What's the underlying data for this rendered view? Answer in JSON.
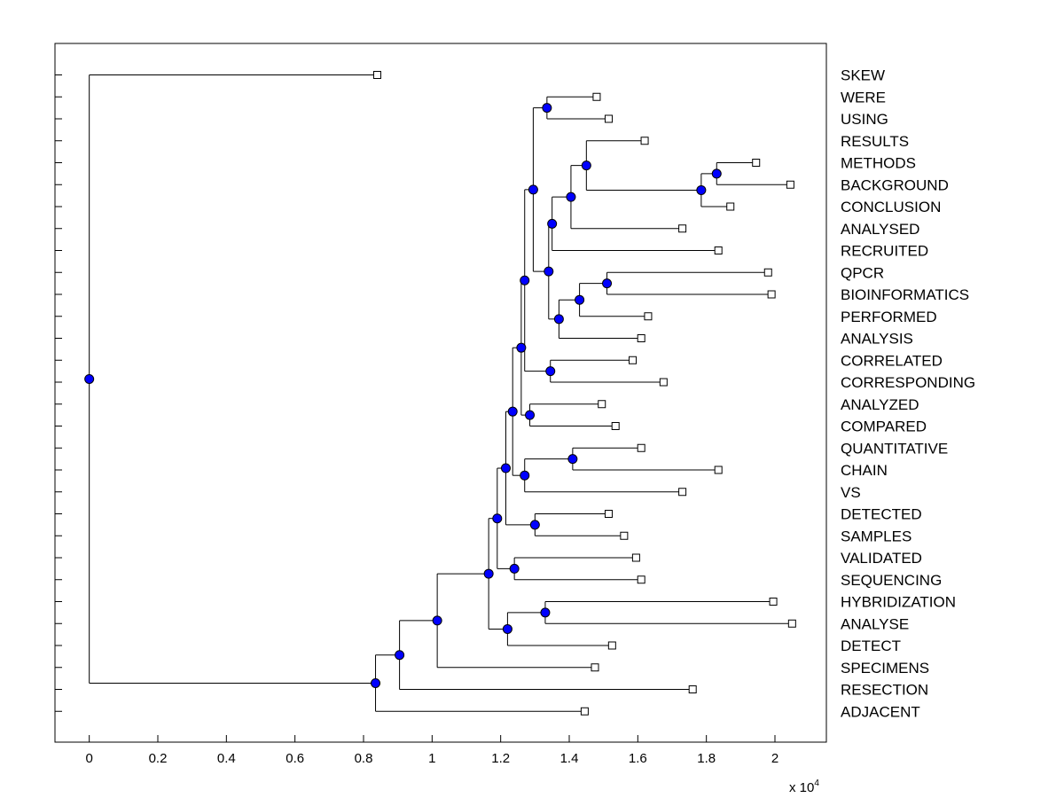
{
  "chart_data": {
    "type": "dendrogram",
    "title": "",
    "xlabel": "",
    "ylabel": "",
    "xlim": [
      -1000,
      21500
    ],
    "x_ticks": [
      0,
      2000,
      4000,
      6000,
      8000,
      10000,
      12000,
      14000,
      16000,
      18000,
      20000
    ],
    "x_tick_labels": [
      "0",
      "0.2",
      "0.4",
      "0.6",
      "0.8",
      "1",
      "1.2",
      "1.4",
      "1.6",
      "1.8",
      "2"
    ],
    "x_multiplier_base": "x 10",
    "x_multiplier_exp": "4",
    "grid": false,
    "leaves": [
      {
        "label": "SKEW",
        "x": 8400
      },
      {
        "label": "WERE",
        "x": 14800
      },
      {
        "label": "USING",
        "x": 15150
      },
      {
        "label": "RESULTS",
        "x": 16200
      },
      {
        "label": "METHODS",
        "x": 19450
      },
      {
        "label": "BACKGROUND",
        "x": 20450
      },
      {
        "label": "CONCLUSION",
        "x": 18700
      },
      {
        "label": "ANALYSED",
        "x": 17300
      },
      {
        "label": "RECRUITED",
        "x": 18350
      },
      {
        "label": "QPCR",
        "x": 19800
      },
      {
        "label": "BIOINFORMATICS",
        "x": 19900
      },
      {
        "label": "PERFORMED",
        "x": 16300
      },
      {
        "label": "ANALYSIS",
        "x": 16100
      },
      {
        "label": "CORRELATED",
        "x": 15850
      },
      {
        "label": "CORRESPONDING",
        "x": 16750
      },
      {
        "label": "ANALYZED",
        "x": 14950
      },
      {
        "label": "COMPARED",
        "x": 15350
      },
      {
        "label": "QUANTITATIVE",
        "x": 16100
      },
      {
        "label": "CHAIN",
        "x": 18350
      },
      {
        "label": "VS",
        "x": 17300
      },
      {
        "label": "DETECTED",
        "x": 15150
      },
      {
        "label": "SAMPLES",
        "x": 15600
      },
      {
        "label": "VALIDATED",
        "x": 15950
      },
      {
        "label": "SEQUENCING",
        "x": 16100
      },
      {
        "label": "HYBRIDIZATION",
        "x": 19950
      },
      {
        "label": "ANALYSE",
        "x": 20500
      },
      {
        "label": "DETECT",
        "x": 15250
      },
      {
        "label": "SPECIMENS",
        "x": 14750
      },
      {
        "label": "RESECTION",
        "x": 17600
      },
      {
        "label": "ADJACENT",
        "x": 14450
      }
    ],
    "merges": [
      {
        "id": "m1",
        "x": 13350,
        "children": [
          "WERE",
          "USING"
        ]
      },
      {
        "id": "m2",
        "x": 18300,
        "children": [
          "METHODS",
          "BACKGROUND"
        ]
      },
      {
        "id": "m3",
        "x": 17850,
        "children": [
          "m2",
          "CONCLUSION"
        ]
      },
      {
        "id": "m4",
        "x": 14500,
        "children": [
          "RESULTS",
          "m3"
        ]
      },
      {
        "id": "m5",
        "x": 14050,
        "children": [
          "m4",
          "ANALYSED"
        ]
      },
      {
        "id": "m6",
        "x": 13500,
        "children": [
          "m5",
          "RECRUITED"
        ]
      },
      {
        "id": "m7",
        "x": 15100,
        "children": [
          "QPCR",
          "BIOINFORMATICS"
        ]
      },
      {
        "id": "m8",
        "x": 14300,
        "children": [
          "m7",
          "PERFORMED"
        ]
      },
      {
        "id": "m9",
        "x": 13700,
        "children": [
          "m8",
          "ANALYSIS"
        ]
      },
      {
        "id": "m10",
        "x": 13400,
        "children": [
          "m6",
          "m9"
        ]
      },
      {
        "id": "m11",
        "x": 12950,
        "children": [
          "m1",
          "m10"
        ]
      },
      {
        "id": "m12",
        "x": 13450,
        "children": [
          "CORRELATED",
          "CORRESPONDING"
        ]
      },
      {
        "id": "m13",
        "x": 12700,
        "children": [
          "m11",
          "m12"
        ]
      },
      {
        "id": "m14",
        "x": 12850,
        "children": [
          "ANALYZED",
          "COMPARED"
        ]
      },
      {
        "id": "m15",
        "x": 12600,
        "children": [
          "m13",
          "m14"
        ]
      },
      {
        "id": "m16",
        "x": 14100,
        "children": [
          "QUANTITATIVE",
          "CHAIN"
        ]
      },
      {
        "id": "m17",
        "x": 12700,
        "children": [
          "m16",
          "VS"
        ]
      },
      {
        "id": "m18",
        "x": 12350,
        "children": [
          "m15",
          "m17"
        ]
      },
      {
        "id": "m19",
        "x": 13000,
        "children": [
          "DETECTED",
          "SAMPLES"
        ]
      },
      {
        "id": "m20",
        "x": 12150,
        "children": [
          "m18",
          "m19"
        ]
      },
      {
        "id": "m21",
        "x": 12400,
        "children": [
          "VALIDATED",
          "SEQUENCING"
        ]
      },
      {
        "id": "m22",
        "x": 11900,
        "children": [
          "m20",
          "m21"
        ]
      },
      {
        "id": "m23",
        "x": 13300,
        "children": [
          "HYBRIDIZATION",
          "ANALYSE"
        ]
      },
      {
        "id": "m24",
        "x": 12200,
        "children": [
          "m23",
          "DETECT"
        ]
      },
      {
        "id": "m25",
        "x": 11650,
        "children": [
          "m22",
          "m24"
        ]
      },
      {
        "id": "m26",
        "x": 10150,
        "children": [
          "m25",
          "SPECIMENS"
        ]
      },
      {
        "id": "m27",
        "x": 9050,
        "children": [
          "m26",
          "RESECTION"
        ]
      },
      {
        "id": "m28",
        "x": 8350,
        "children": [
          "m27",
          "ADJACENT"
        ]
      },
      {
        "id": "m29",
        "x": 0,
        "children": [
          "SKEW",
          "m28"
        ]
      }
    ],
    "colors": {
      "node_fill": "#0000ff",
      "node_stroke": "#000000",
      "leaf_fill": "#ffffff",
      "line": "#000000",
      "background": "#ffffff"
    }
  }
}
